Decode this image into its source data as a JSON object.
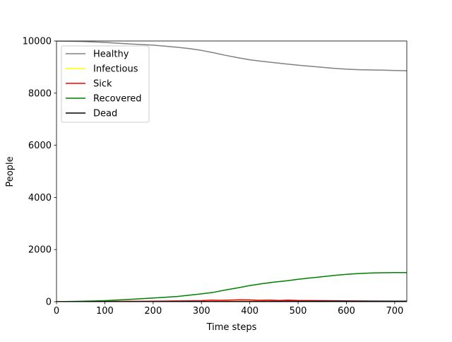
{
  "chart_data": {
    "type": "line",
    "title": "",
    "xlabel": "Time steps",
    "ylabel": "People",
    "xlim": [
      0,
      725
    ],
    "ylim": [
      0,
      10000
    ],
    "xticks": [
      0,
      100,
      200,
      300,
      400,
      500,
      600,
      700
    ],
    "yticks": [
      0,
      2000,
      4000,
      6000,
      8000,
      10000
    ],
    "grid": false,
    "legend_position": "top-left",
    "series": [
      {
        "name": "Healthy",
        "color": "#808080",
        "x": [
          0,
          50,
          100,
          150,
          200,
          250,
          275,
          300,
          325,
          350,
          375,
          400,
          425,
          450,
          475,
          500,
          525,
          550,
          575,
          600,
          625,
          650,
          675,
          700,
          725
        ],
        "y": [
          9998,
          9985,
          9945,
          9890,
          9840,
          9760,
          9710,
          9640,
          9550,
          9450,
          9360,
          9280,
          9220,
          9170,
          9120,
          9070,
          9030,
          8990,
          8950,
          8920,
          8900,
          8890,
          8880,
          8870,
          8860
        ]
      },
      {
        "name": "Infectious",
        "color": "#ffff00",
        "x": [
          0,
          100,
          200,
          300,
          400,
          500,
          600,
          700,
          725
        ],
        "y": [
          2,
          5,
          8,
          12,
          15,
          12,
          10,
          8,
          8
        ]
      },
      {
        "name": "Sick",
        "color": "#ff0000",
        "x": [
          0,
          50,
          100,
          150,
          200,
          250,
          300,
          320,
          340,
          360,
          380,
          400,
          420,
          440,
          460,
          480,
          500,
          550,
          600,
          650,
          700,
          725
        ],
        "y": [
          0,
          5,
          10,
          15,
          20,
          30,
          40,
          60,
          55,
          65,
          75,
          70,
          55,
          65,
          50,
          60,
          45,
          40,
          30,
          25,
          20,
          20
        ]
      },
      {
        "name": "Recovered",
        "color": "#008000",
        "x": [
          0,
          50,
          100,
          150,
          200,
          250,
          300,
          325,
          350,
          375,
          400,
          425,
          450,
          475,
          500,
          525,
          550,
          575,
          600,
          625,
          650,
          675,
          700,
          725
        ],
        "y": [
          0,
          15,
          40,
          90,
          140,
          200,
          300,
          360,
          450,
          530,
          620,
          690,
          750,
          800,
          860,
          910,
          960,
          1010,
          1050,
          1080,
          1100,
          1110,
          1120,
          1120
        ]
      },
      {
        "name": "Dead",
        "color": "#000000",
        "x": [
          0,
          100,
          200,
          300,
          400,
          500,
          600,
          700,
          725
        ],
        "y": [
          0,
          2,
          4,
          8,
          12,
          15,
          18,
          20,
          20
        ]
      }
    ]
  }
}
